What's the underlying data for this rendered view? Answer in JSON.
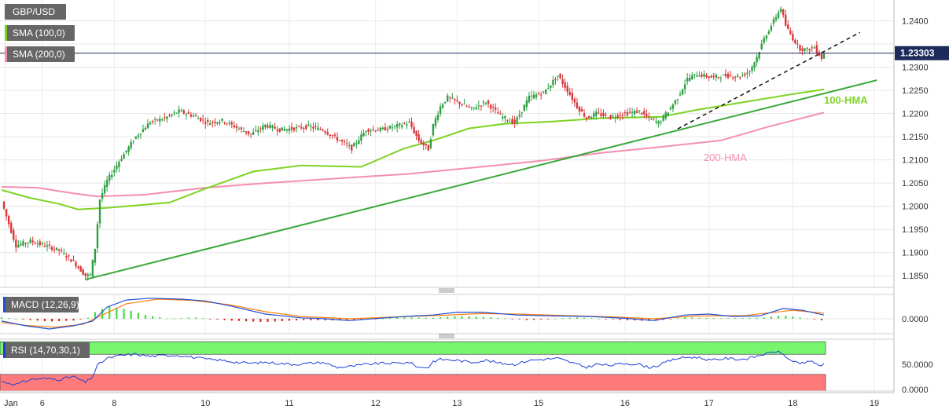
{
  "chart_data": {
    "type": "candlestick",
    "symbol": "GBP/USD",
    "colors": {
      "up": "#2ea043",
      "down": "#d9383a",
      "sma100": "#7ed321",
      "sma200": "#f48fb1",
      "trend_support": "#3aa83a",
      "trend_dashed": "#111111",
      "macd_line": "#1f4fd6",
      "macd_signal": "#ff7f0e",
      "hist_pos": "#3ddc3d",
      "hist_neg": "#e02020",
      "rsi_line": "#1f3fd6",
      "rsi_overbought": "#77f56f",
      "rsi_oversold": "#ff7b7b",
      "last_price_tag": "#1c2b5a",
      "legend_tag": "#666666"
    },
    "main": {
      "yticks": [
        "1.2400",
        "1.2350",
        "1.2300",
        "1.2250",
        "1.2200",
        "1.2150",
        "1.2100",
        "1.2050",
        "1.2000",
        "1.1950",
        "1.1900",
        "1.1850"
      ],
      "ytick_values": [
        1.24,
        1.235,
        1.23,
        1.225,
        1.22,
        1.215,
        1.21,
        1.205,
        1.2,
        1.195,
        1.19,
        1.185
      ],
      "ylim": [
        1.1825,
        1.2445
      ],
      "last_price": "1.23303",
      "last_price_value": 1.23303,
      "legend": [
        {
          "label": "GBP/USD",
          "color": "#555555"
        },
        {
          "label": "SMA (100,0)",
          "color": "#7ed321"
        },
        {
          "label": "SMA (200,0)",
          "color": "#f48fb1"
        }
      ],
      "annotations": {
        "hma100": "100-HMA",
        "hma200": "200-HMA"
      },
      "anchors": [
        [
          0,
          1.201
        ],
        [
          6,
          1.1915
        ],
        [
          12,
          1.1925
        ],
        [
          18,
          1.1915
        ],
        [
          24,
          1.1905
        ],
        [
          30,
          1.188
        ],
        [
          35,
          1.185
        ],
        [
          37,
          1.1852
        ],
        [
          39,
          1.191
        ],
        [
          41,
          1.2015
        ],
        [
          44,
          1.2055
        ],
        [
          50,
          1.2105
        ],
        [
          56,
          1.215
        ],
        [
          62,
          1.2182
        ],
        [
          68,
          1.219
        ],
        [
          74,
          1.2205
        ],
        [
          80,
          1.2195
        ],
        [
          86,
          1.218
        ],
        [
          92,
          1.2185
        ],
        [
          98,
          1.217
        ],
        [
          104,
          1.2155
        ],
        [
          110,
          1.2175
        ],
        [
          116,
          1.2165
        ],
        [
          122,
          1.2168
        ],
        [
          128,
          1.2172
        ],
        [
          134,
          1.2165
        ],
        [
          140,
          1.2145
        ],
        [
          146,
          1.2125
        ],
        [
          152,
          1.2165
        ],
        [
          158,
          1.2165
        ],
        [
          164,
          1.2172
        ],
        [
          170,
          1.218
        ],
        [
          174,
          1.2142
        ],
        [
          178,
          1.2123
        ],
        [
          180,
          1.2175
        ],
        [
          183,
          1.2215
        ],
        [
          186,
          1.2235
        ],
        [
          190,
          1.2225
        ],
        [
          196,
          1.221
        ],
        [
          202,
          1.2225
        ],
        [
          208,
          1.2195
        ],
        [
          214,
          1.218
        ],
        [
          220,
          1.2235
        ],
        [
          226,
          1.2245
        ],
        [
          232,
          1.2282
        ],
        [
          236,
          1.225
        ],
        [
          240,
          1.2215
        ],
        [
          244,
          1.219
        ],
        [
          248,
          1.22
        ],
        [
          254,
          1.2192
        ],
        [
          260,
          1.22
        ],
        [
          266,
          1.2205
        ],
        [
          270,
          1.219
        ],
        [
          274,
          1.218
        ],
        [
          278,
          1.2205
        ],
        [
          282,
          1.2235
        ],
        [
          286,
          1.2275
        ],
        [
          290,
          1.2285
        ],
        [
          296,
          1.2278
        ],
        [
          302,
          1.2282
        ],
        [
          308,
          1.228
        ],
        [
          312,
          1.2292
        ],
        [
          315,
          1.2322
        ],
        [
          318,
          1.2362
        ],
        [
          321,
          1.239
        ],
        [
          323,
          1.241
        ],
        [
          325,
          1.2428
        ],
        [
          327,
          1.239
        ],
        [
          330,
          1.2362
        ],
        [
          333,
          1.234
        ],
        [
          336,
          1.2338
        ],
        [
          339,
          1.2343
        ],
        [
          342,
          1.232
        ],
        [
          343,
          1.233
        ]
      ],
      "sma100": [
        [
          0,
          1.2035
        ],
        [
          12,
          1.2018
        ],
        [
          24,
          1.2005
        ],
        [
          32,
          1.1993
        ],
        [
          45,
          1.1997
        ],
        [
          70,
          1.2008
        ],
        [
          85,
          1.2038
        ],
        [
          105,
          1.2075
        ],
        [
          125,
          1.2088
        ],
        [
          150,
          1.2085
        ],
        [
          168,
          1.2125
        ],
        [
          180,
          1.2142
        ],
        [
          195,
          1.2168
        ],
        [
          210,
          1.2178
        ],
        [
          230,
          1.2183
        ],
        [
          250,
          1.219
        ],
        [
          275,
          1.2193
        ],
        [
          290,
          1.2208
        ],
        [
          310,
          1.2225
        ],
        [
          330,
          1.2242
        ],
        [
          343,
          1.2252
        ]
      ],
      "sma200": [
        [
          0,
          1.2042
        ],
        [
          15,
          1.204
        ],
        [
          30,
          1.2028
        ],
        [
          40,
          1.2021
        ],
        [
          60,
          1.2025
        ],
        [
          85,
          1.204
        ],
        [
          110,
          1.205
        ],
        [
          140,
          1.206
        ],
        [
          170,
          1.207
        ],
        [
          200,
          1.2085
        ],
        [
          225,
          1.2098
        ],
        [
          250,
          1.2115
        ],
        [
          275,
          1.2128
        ],
        [
          300,
          1.2142
        ],
        [
          320,
          1.2172
        ],
        [
          343,
          1.2202
        ]
      ],
      "support_line": [
        [
          35,
          1.1842
        ],
        [
          365,
          1.2272
        ]
      ],
      "dashed_line": [
        [
          282,
          1.2167
        ],
        [
          358,
          1.2375
        ]
      ]
    },
    "macd": {
      "legend": "MACD (12,26,9)",
      "ytick": "0.0000",
      "range": [
        -0.0032,
        0.0052
      ],
      "line": [
        [
          0,
          -0.0005
        ],
        [
          10,
          -0.0015
        ],
        [
          20,
          -0.0022
        ],
        [
          30,
          -0.0015
        ],
        [
          38,
          -0.0005
        ],
        [
          44,
          0.0025
        ],
        [
          52,
          0.004
        ],
        [
          62,
          0.0044
        ],
        [
          75,
          0.0042
        ],
        [
          85,
          0.0038
        ],
        [
          95,
          0.0028
        ],
        [
          110,
          0.001
        ],
        [
          125,
          0.0002
        ],
        [
          135,
          0.0
        ],
        [
          145,
          -0.0004
        ],
        [
          160,
          0.0002
        ],
        [
          172,
          0.0006
        ],
        [
          180,
          0.0008
        ],
        [
          190,
          0.0014
        ],
        [
          200,
          0.0014
        ],
        [
          215,
          0.0008
        ],
        [
          230,
          0.0006
        ],
        [
          245,
          0.0005
        ],
        [
          260,
          0.0001
        ],
        [
          272,
          -0.0004
        ],
        [
          285,
          0.0008
        ],
        [
          295,
          0.001
        ],
        [
          305,
          0.0005
        ],
        [
          316,
          0.0006
        ],
        [
          326,
          0.0022
        ],
        [
          334,
          0.0018
        ],
        [
          343,
          0.0008
        ]
      ],
      "signal": [
        [
          0,
          -0.0008
        ],
        [
          10,
          -0.0014
        ],
        [
          22,
          -0.0018
        ],
        [
          34,
          -0.0012
        ],
        [
          42,
          0.0008
        ],
        [
          52,
          0.0032
        ],
        [
          65,
          0.0042
        ],
        [
          80,
          0.0039
        ],
        [
          95,
          0.003
        ],
        [
          110,
          0.0015
        ],
        [
          125,
          0.0005
        ],
        [
          145,
          0.0
        ],
        [
          165,
          0.0004
        ],
        [
          182,
          0.0007
        ],
        [
          200,
          0.0011
        ],
        [
          215,
          0.001
        ],
        [
          235,
          0.0007
        ],
        [
          255,
          0.0004
        ],
        [
          272,
          0.0
        ],
        [
          290,
          0.0006
        ],
        [
          310,
          0.0007
        ],
        [
          330,
          0.0018
        ],
        [
          343,
          0.0012
        ]
      ],
      "hist": [
        [
          0,
          0.0003
        ],
        [
          10,
          -0.0002
        ],
        [
          20,
          -0.0006
        ],
        [
          30,
          -0.0004
        ],
        [
          36,
          0.0002
        ],
        [
          40,
          0.0018
        ],
        [
          45,
          0.0026
        ],
        [
          52,
          0.002
        ],
        [
          60,
          0.0008
        ],
        [
          70,
          0.0
        ],
        [
          80,
          0.0003
        ],
        [
          95,
          -0.0004
        ],
        [
          110,
          -0.0007
        ],
        [
          125,
          -0.0003
        ],
        [
          145,
          -0.0004
        ],
        [
          165,
          0.0003
        ],
        [
          180,
          0.0002
        ],
        [
          190,
          0.0006
        ],
        [
          205,
          0.0003
        ],
        [
          220,
          -0.0003
        ],
        [
          240,
          0.0003
        ],
        [
          260,
          -0.0003
        ],
        [
          272,
          -0.0005
        ],
        [
          285,
          0.0003
        ],
        [
          300,
          0.0001
        ],
        [
          316,
          0.0002
        ],
        [
          326,
          0.0007
        ],
        [
          334,
          0.0002
        ],
        [
          343,
          -0.0004
        ]
      ]
    },
    "rsi": {
      "legend": "RSI (14,70,30,1)",
      "yticks": [
        "50.0000",
        "0.0000"
      ],
      "ytick_values": [
        50,
        0
      ],
      "range": [
        -3,
        100
      ],
      "overbought": 70,
      "oversold": 30,
      "line": [
        [
          0,
          16
        ],
        [
          6,
          10
        ],
        [
          12,
          20
        ],
        [
          18,
          22
        ],
        [
          24,
          20
        ],
        [
          30,
          26
        ],
        [
          35,
          14
        ],
        [
          38,
          26
        ],
        [
          40,
          48
        ],
        [
          44,
          62
        ],
        [
          50,
          68
        ],
        [
          56,
          70
        ],
        [
          62,
          66
        ],
        [
          68,
          68
        ],
        [
          74,
          68
        ],
        [
          80,
          64
        ],
        [
          86,
          60
        ],
        [
          92,
          58
        ],
        [
          98,
          54
        ],
        [
          104,
          52
        ],
        [
          110,
          54
        ],
        [
          116,
          52
        ],
        [
          122,
          50
        ],
        [
          128,
          52
        ],
        [
          134,
          54
        ],
        [
          140,
          44
        ],
        [
          146,
          46
        ],
        [
          152,
          50
        ],
        [
          158,
          52
        ],
        [
          164,
          52
        ],
        [
          170,
          54
        ],
        [
          174,
          44
        ],
        [
          178,
          44
        ],
        [
          180,
          56
        ],
        [
          183,
          60
        ],
        [
          190,
          58
        ],
        [
          196,
          54
        ],
        [
          202,
          58
        ],
        [
          208,
          52
        ],
        [
          214,
          50
        ],
        [
          220,
          58
        ],
        [
          226,
          60
        ],
        [
          232,
          62
        ],
        [
          236,
          56
        ],
        [
          240,
          50
        ],
        [
          244,
          44
        ],
        [
          248,
          50
        ],
        [
          254,
          48
        ],
        [
          260,
          52
        ],
        [
          266,
          50
        ],
        [
          270,
          44
        ],
        [
          274,
          48
        ],
        [
          278,
          56
        ],
        [
          282,
          62
        ],
        [
          286,
          64
        ],
        [
          290,
          64
        ],
        [
          296,
          58
        ],
        [
          302,
          62
        ],
        [
          308,
          60
        ],
        [
          312,
          62
        ],
        [
          316,
          68
        ],
        [
          320,
          72
        ],
        [
          323,
          76
        ],
        [
          326,
          70
        ],
        [
          330,
          54
        ],
        [
          334,
          52
        ],
        [
          338,
          56
        ],
        [
          342,
          46
        ],
        [
          343,
          50
        ]
      ]
    },
    "xticks": [
      {
        "label": "Jan",
        "pos": 0
      },
      {
        "label": "6",
        "pos": 17
      },
      {
        "label": "8",
        "pos": 47
      },
      {
        "label": "10",
        "pos": 85
      },
      {
        "label": "11",
        "pos": 120
      },
      {
        "label": "12",
        "pos": 156
      },
      {
        "label": "13",
        "pos": 190
      },
      {
        "label": "15",
        "pos": 224
      },
      {
        "label": "16",
        "pos": 260
      },
      {
        "label": "17",
        "pos": 295
      },
      {
        "label": "18",
        "pos": 330
      },
      {
        "label": "19",
        "pos": 364
      }
    ]
  }
}
